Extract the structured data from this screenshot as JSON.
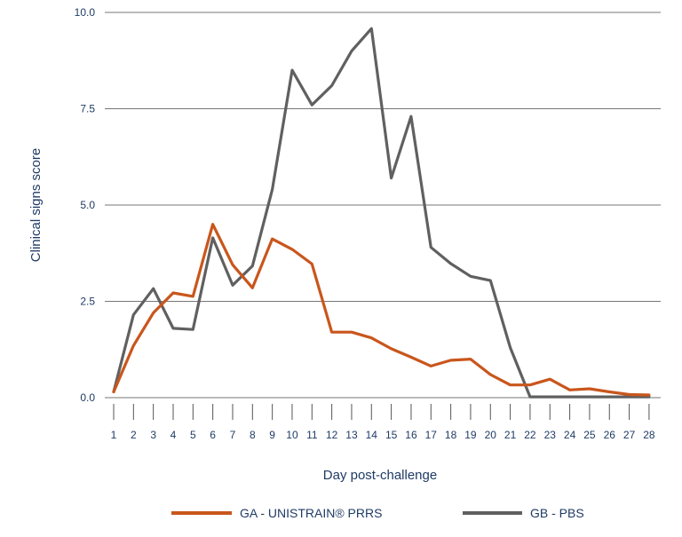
{
  "chart_data": {
    "type": "line",
    "xlabel": "Day post-challenge",
    "ylabel": "Clinical signs score",
    "x": [
      1,
      2,
      3,
      4,
      5,
      6,
      7,
      8,
      9,
      10,
      11,
      12,
      13,
      14,
      15,
      16,
      17,
      18,
      19,
      20,
      21,
      22,
      23,
      24,
      25,
      26,
      27,
      28
    ],
    "x_tick_labels": [
      "1",
      "2",
      "3",
      "4",
      "5",
      "6",
      "7",
      "8",
      "9",
      "10",
      "11",
      "12",
      "13",
      "14",
      "15",
      "16",
      "17",
      "18",
      "19",
      "20",
      "21",
      "22",
      "23",
      "24",
      "25",
      "26",
      "27",
      "28"
    ],
    "y_tick_labels": [
      "0.0",
      "2.5",
      "5.0",
      "7.5",
      "10.0"
    ],
    "y_ticks": [
      0,
      2.5,
      5,
      7.5,
      10
    ],
    "ylim": [
      0,
      10
    ],
    "grid": "horizontal",
    "legend_position": "bottom",
    "series": [
      {
        "name": "GA - UNISTRAIN® PRRS",
        "color": "#c9561c",
        "values": [
          0.15,
          1.35,
          2.2,
          2.72,
          2.63,
          4.5,
          3.45,
          2.85,
          4.12,
          3.85,
          3.47,
          1.7,
          1.7,
          1.55,
          1.27,
          1.05,
          0.82,
          0.97,
          1.0,
          0.6,
          0.33,
          0.33,
          0.48,
          0.2,
          0.23,
          0.15,
          0.08,
          0.07
        ]
      },
      {
        "name": "GB - PBS",
        "color": "#606060",
        "values": [
          0.15,
          2.15,
          2.83,
          1.8,
          1.77,
          4.15,
          2.92,
          3.42,
          5.4,
          8.5,
          7.6,
          8.1,
          9.0,
          9.58,
          5.7,
          7.3,
          3.9,
          3.48,
          3.15,
          3.04,
          1.3,
          0.02,
          0.02,
          0.02,
          0.02,
          0.02,
          0.02,
          0.02
        ]
      }
    ]
  }
}
